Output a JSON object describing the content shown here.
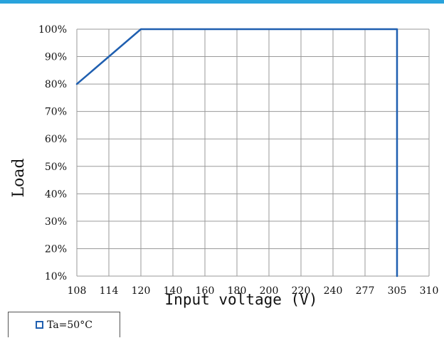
{
  "chart_data": {
    "type": "line",
    "xlabel": "Input voltage (V)",
    "ylabel": "Load",
    "categories": [
      "108",
      "114",
      "120",
      "140",
      "160",
      "180",
      "200",
      "220",
      "240",
      "277",
      "305",
      "310"
    ],
    "y_ticks": [
      "10%",
      "20%",
      "30%",
      "40%",
      "50%",
      "60%",
      "70%",
      "80%",
      "90%",
      "100%"
    ],
    "ylim": [
      10,
      100
    ],
    "grid": true,
    "series": [
      {
        "name": "Ta=50°C",
        "color": "#1f5fb0",
        "points": [
          {
            "x": "108",
            "y": 80
          },
          {
            "x": "120",
            "y": 100
          },
          {
            "x": "305",
            "y": 100
          },
          {
            "x": "305",
            "y": 10
          }
        ]
      }
    ],
    "legend": {
      "label": "Ta=50°C",
      "position": "bottom-left"
    }
  },
  "colors": {
    "accent_bar": "#29a3dc",
    "grid": "#9a9a9a",
    "series": "#1f5fb0"
  }
}
